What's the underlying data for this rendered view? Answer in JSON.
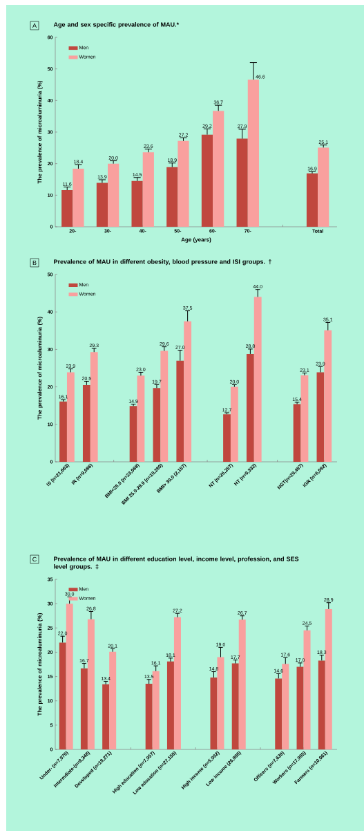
{
  "chart_data": [
    {
      "type": "bar",
      "title": "Age and sex specific prevalence of MAU.*",
      "xlabel": "Age (years)",
      "ylabel": "The prevalence of microaluminuria (%)",
      "annotations": [
        "A"
      ],
      "categories": [
        "20-",
        "30-",
        "40-",
        "50-",
        "60-",
        "70-",
        null,
        "Total"
      ],
      "ylim": [
        0,
        60
      ],
      "yticks": [
        0,
        10,
        20,
        30,
        40,
        50,
        60
      ],
      "legend": "top left",
      "series": [
        {
          "name": "Men",
          "color": "#c0473e",
          "values": [
            11.6,
            13.9,
            14.5,
            18.9,
            29.2,
            27.9,
            null,
            16.9
          ],
          "value_labels": [
            "11.6",
            "13.9",
            "14.5",
            "18.9",
            "29.2",
            "27.9",
            null,
            "16.9"
          ],
          "errors": [
            [
              11.6,
              12.6
            ],
            [
              13.9,
              14.9
            ],
            [
              14.5,
              15.6
            ],
            [
              18.9,
              20.2
            ],
            [
              29.2,
              31.0
            ],
            [
              27.9,
              30.9
            ],
            null,
            [
              16.9,
              17.5
            ]
          ]
        },
        {
          "name": "Women",
          "color": "#f9a09e",
          "values": [
            18.4,
            20.0,
            23.6,
            27.2,
            36.7,
            46.6,
            null,
            25.1
          ],
          "value_labels": [
            "18.4",
            "20.0",
            "23.6",
            "27.2",
            "36.7",
            "46.6",
            null,
            "25.1"
          ],
          "errors": [
            [
              18.4,
              19.7
            ],
            [
              20.0,
              20.9
            ],
            [
              23.6,
              24.6
            ],
            [
              27.2,
              28.2
            ],
            [
              36.7,
              38.5
            ],
            [
              46.6,
              52.0
            ],
            null,
            [
              25.1,
              25.9
            ]
          ]
        }
      ]
    },
    {
      "type": "bar",
      "title": "Prevalence of MAU in different obesity, blood pressure and ISI groups. †",
      "ylabel": "The prevalence of microaluminuria (%)",
      "annotations": [
        "B"
      ],
      "categories": [
        "IS (n=21,663)",
        "IR (n=9,086)",
        null,
        "BMI<25.0 (n=23,068)",
        "BMI 25.0-29.9 (n=10,280)",
        "BMI> 30.0 (2,157)",
        null,
        "NT (n=26,257)",
        "HT (n=9,332)",
        null,
        "NGT(n=29,497)",
        "IGR (n=6,092)"
      ],
      "ylim": [
        0,
        50
      ],
      "yticks": [
        0,
        10,
        20,
        30,
        40,
        50
      ],
      "legend": "top left",
      "series": [
        {
          "name": "Men",
          "color": "#c0473e",
          "values": [
            16.1,
            20.5,
            null,
            14.9,
            19.7,
            27.0,
            null,
            12.7,
            28.8,
            null,
            15.4,
            23.9
          ],
          "value_labels": [
            "16.1",
            "20.5",
            null,
            "14.9",
            "19.7",
            "27.0",
            null,
            "12.7",
            "28.8",
            null,
            "15.4",
            "23.9"
          ],
          "errors": [
            [
              16.1,
              16.6
            ],
            [
              20.5,
              21.5
            ],
            null,
            [
              14.9,
              15.4
            ],
            [
              19.7,
              20.6
            ],
            [
              27.0,
              29.8
            ],
            null,
            [
              12.7,
              13.1
            ],
            [
              28.8,
              30.1
            ],
            null,
            [
              15.4,
              15.9
            ],
            [
              23.9,
              25.4
            ]
          ]
        },
        {
          "name": "Women",
          "color": "#f9a09e",
          "values": [
            23.9,
            29.3,
            null,
            23.0,
            29.6,
            37.5,
            null,
            20.0,
            44.0,
            null,
            23.1,
            35.1
          ],
          "value_labels": [
            "23.9",
            "29.3",
            null,
            "23.0",
            "29.6",
            "37.5",
            null,
            "20.0",
            "44.0",
            null,
            "23.1",
            "35.1"
          ],
          "errors": [
            [
              23.9,
              24.8
            ],
            [
              29.3,
              30.3
            ],
            null,
            [
              23.0,
              23.9
            ],
            [
              29.6,
              30.7
            ],
            [
              37.5,
              40.3
            ],
            null,
            [
              20.0,
              20.6
            ],
            [
              44.0,
              46.0
            ],
            null,
            [
              23.1,
              23.7
            ],
            [
              35.1,
              37.2
            ]
          ]
        }
      ]
    },
    {
      "type": "bar",
      "title": "Prevalence of MAU in different education level, income level, profession, and SES level groups. ‡",
      "ylabel": "The prevalence of microaluminuria (%)",
      "annotations": [
        "C"
      ],
      "categories": [
        "Under- (n=7,970)",
        "Intermdiate-(n=8,348)",
        "Developed (n=19,271)",
        null,
        "High education (n=7,957)",
        "Low education (n=27,159)",
        null,
        "High income (n=5,992)",
        "Low income (26,800)",
        null,
        "Officers (n=7,639)",
        "Workers (n=17,905)",
        "Farmers (n=10,061)"
      ],
      "ylim": [
        0,
        35
      ],
      "yticks": [
        0,
        5,
        10,
        15,
        20,
        25,
        30,
        35
      ],
      "legend": "top left",
      "series": [
        {
          "name": "Men",
          "color": "#c0473e",
          "values": [
            22.0,
            16.7,
            13.4,
            null,
            13.5,
            18.1,
            null,
            14.8,
            17.7,
            null,
            14.6,
            17.0,
            18.3
          ],
          "value_labels": [
            "22.0",
            "16.7",
            "13.4",
            null,
            "13.5",
            "18.1",
            null,
            "14.8",
            "17.7",
            null,
            "14.6",
            "17.0",
            "18.3"
          ],
          "errors": [
            [
              22.0,
              23.3
            ],
            [
              16.7,
              17.7
            ],
            [
              13.4,
              14.0
            ],
            null,
            [
              13.5,
              14.4
            ],
            [
              18.1,
              18.8
            ],
            null,
            [
              14.8,
              16.0
            ],
            [
              17.7,
              18.4
            ],
            null,
            [
              14.6,
              15.6
            ],
            [
              17.0,
              17.8
            ],
            [
              18.3,
              19.4
            ]
          ]
        },
        {
          "name": "Women",
          "color": "#f9a09e",
          "values": [
            30.0,
            26.8,
            20.1,
            null,
            16.1,
            27.2,
            null,
            19.0,
            26.7,
            null,
            17.6,
            24.5,
            28.9
          ],
          "value_labels": [
            "30.0",
            "26.8",
            "20.1",
            null,
            "16.1",
            "27.2",
            null,
            "19.0",
            "26.7",
            null,
            "17.6",
            "24.5",
            "28.9"
          ],
          "errors": [
            [
              30.0,
              31.4
            ],
            [
              26.8,
              28.4
            ],
            [
              20.1,
              20.7
            ],
            null,
            [
              16.1,
              17.2
            ],
            [
              27.2,
              28.0
            ],
            null,
            [
              19.0,
              21.0
            ],
            [
              26.7,
              27.5
            ],
            null,
            [
              17.6,
              18.9
            ],
            [
              24.5,
              25.4
            ],
            [
              28.9,
              30.2
            ]
          ]
        }
      ]
    }
  ]
}
